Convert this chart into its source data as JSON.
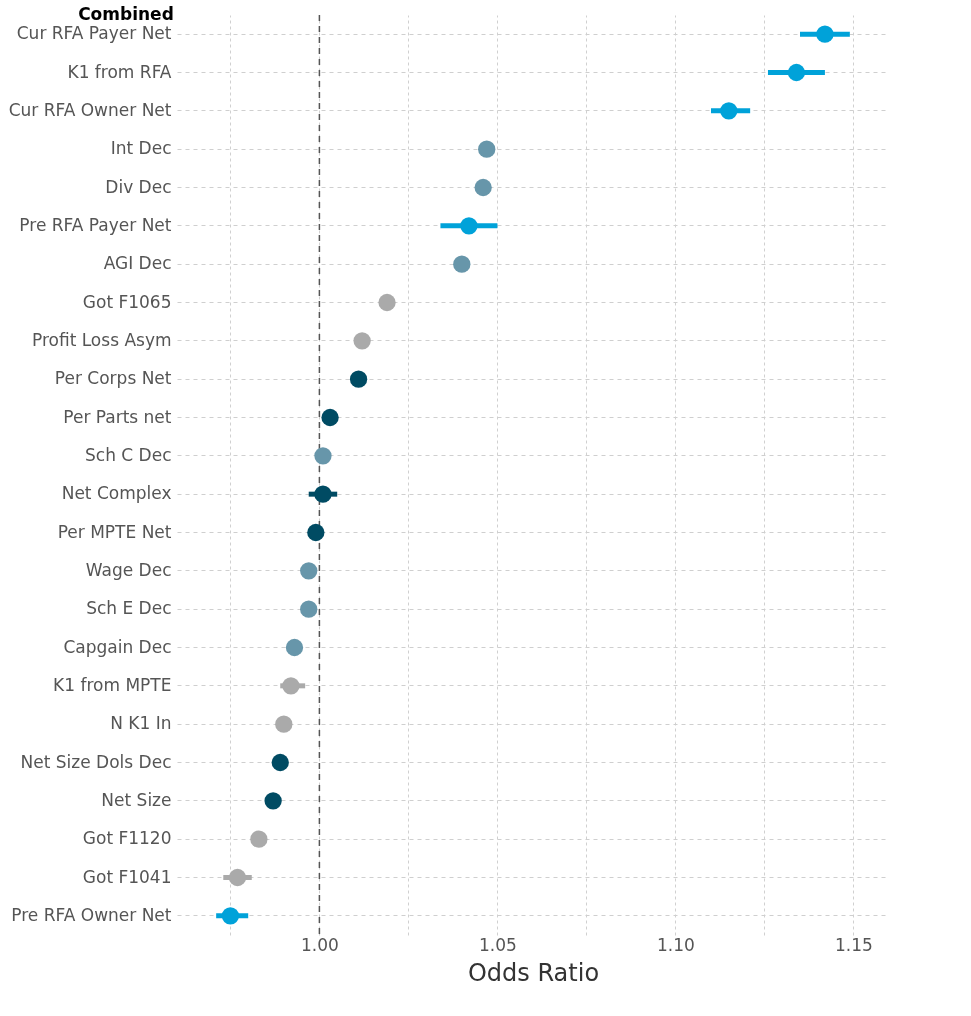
{
  "chart_data": {
    "type": "scatter",
    "title": "Combined",
    "xlabel": "Odds Ratio",
    "orientation": "horizontal",
    "categories": [
      "Cur RFA Payer Net",
      "K1 from RFA",
      "Cur RFA Owner Net",
      "Int Dec",
      "Div Dec",
      "Pre RFA Payer Net",
      "AGI Dec",
      "Got F1065",
      "Profit Loss Asym",
      "Per Corps Net",
      "Per Parts net",
      "Sch C Dec",
      "Net Complex",
      "Per MPTE Net",
      "Wage Dec",
      "Sch E Dec",
      "Capgain Dec",
      "K1 from MPTE",
      "N K1 In",
      "Net Size Dols Dec",
      "Net Size",
      "Got F1120",
      "Got F1041",
      "Pre RFA Owner Net"
    ],
    "values": [
      1.142,
      1.134,
      1.115,
      1.047,
      1.046,
      1.042,
      1.04,
      1.019,
      1.012,
      1.011,
      1.003,
      1.001,
      1.001,
      0.999,
      0.997,
      0.997,
      0.993,
      0.992,
      0.99,
      0.989,
      0.987,
      0.983,
      0.977,
      0.975
    ],
    "errors": [
      [
        1.135,
        1.149
      ],
      [
        1.126,
        1.142
      ],
      [
        1.11,
        1.121
      ],
      null,
      null,
      [
        1.034,
        1.05
      ],
      null,
      null,
      null,
      null,
      null,
      null,
      [
        0.997,
        1.005
      ],
      null,
      null,
      null,
      null,
      [
        0.989,
        0.996
      ],
      null,
      null,
      null,
      [
        0.981,
        0.985
      ],
      [
        0.973,
        0.981
      ],
      [
        0.971,
        0.98
      ]
    ],
    "colors": [
      "#00a2d9",
      "#00a2d9",
      "#00a2d9",
      "#6796aa",
      "#6796aa",
      "#00a2d9",
      "#6796aa",
      "#aaaaaa",
      "#aaaaaa",
      "#004b63",
      "#004b63",
      "#6796aa",
      "#004b63",
      "#004b63",
      "#6796aa",
      "#6796aa",
      "#6796aa",
      "#aaaaaa",
      "#aaaaaa",
      "#004b63",
      "#004b63",
      "#aaaaaa",
      "#aaaaaa",
      "#00a2d9"
    ],
    "xlim": [
      0.96,
      1.16
    ],
    "xticks": [
      {
        "value": 0.975,
        "label": null
      },
      {
        "value": 1,
        "label": "1.00"
      },
      {
        "value": 1.025,
        "label": null
      },
      1.05,
      {
        "value": 1.075,
        "label": null
      },
      {
        "value": 1.1,
        "label": "1.10"
      },
      {
        "value": 1.125,
        "label": null
      },
      1.15
    ],
    "ref_lines": [
      {
        "axis": "x",
        "value": 1,
        "color": "#555555",
        "line_style": "dashed"
      }
    ],
    "grid": true,
    "marker": "circle"
  }
}
